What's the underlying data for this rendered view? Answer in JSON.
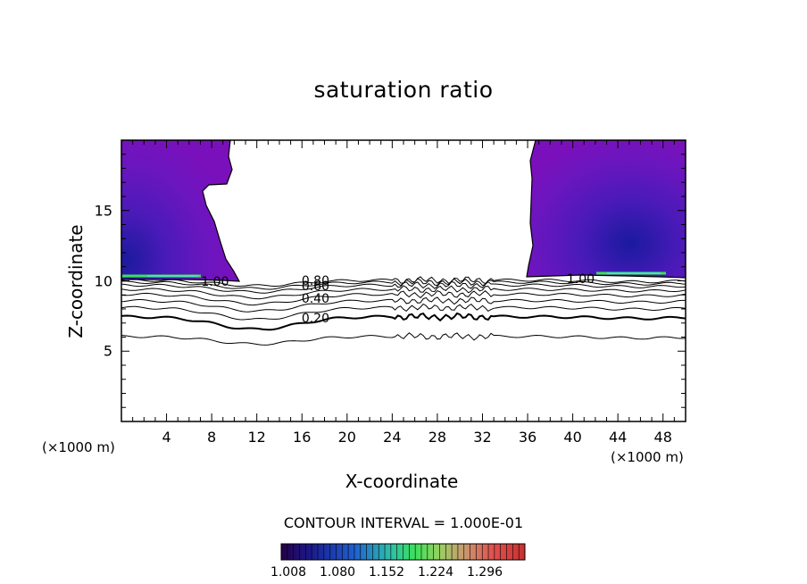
{
  "chart_data": {
    "type": "contour",
    "title": "saturation ratio",
    "xlabel": "X-coordinate",
    "ylabel": "Z-coordinate",
    "x_unit_left": "(×1000 m)",
    "x_unit_right": "(×1000 m)",
    "xlim": [
      0,
      50
    ],
    "ylim": [
      0,
      20
    ],
    "x_ticks": [
      4,
      8,
      12,
      16,
      20,
      24,
      28,
      32,
      36,
      40,
      44,
      48
    ],
    "y_ticks": [
      5,
      10,
      15
    ],
    "contour_interval_text": "CONTOUR INTERVAL = 1.000E-01",
    "contour_labels": [
      {
        "text": "1.00",
        "x": 8.3,
        "z": 9.9
      },
      {
        "text": "1.00",
        "x": 40.7,
        "z": 10.1
      },
      {
        "text": "0.80",
        "x": 17.2,
        "z": 10.0
      },
      {
        "text": "0.60",
        "x": 17.2,
        "z": 9.6
      },
      {
        "text": "0.40",
        "x": 17.2,
        "z": 8.7
      },
      {
        "text": "0.20",
        "x": 17.2,
        "z": 7.3
      }
    ],
    "contour_lines": [
      {
        "level": 0.9,
        "z": 10.05,
        "dip": 0.4
      },
      {
        "level": 0.8,
        "z": 9.9,
        "dip": 0.45
      },
      {
        "level": 0.7,
        "z": 9.7,
        "dip": 0.5
      },
      {
        "level": 0.6,
        "z": 9.4,
        "dip": 0.6
      },
      {
        "level": 0.5,
        "z": 9.05,
        "dip": 0.7
      },
      {
        "level": 0.4,
        "z": 8.6,
        "dip": 0.75
      },
      {
        "level": 0.3,
        "z": 8.1,
        "dip": 0.85
      },
      {
        "level": 0.2,
        "z": 7.45,
        "dip": 0.9
      },
      {
        "level": 0.1,
        "z": 6.05,
        "dip": 0.55
      }
    ],
    "colorbar": {
      "labels": [
        "1.008",
        "1.080",
        "1.152",
        "1.224",
        "1.296"
      ],
      "colors": [
        "#26004a",
        "#1a1a8a",
        "#1f5fd0",
        "#2fc0a8",
        "#3ce05a",
        "#9ad060",
        "#c89a70",
        "#d87060",
        "#e05050",
        "#c83030"
      ]
    },
    "supersaturated_regions": [
      {
        "name": "left cloud",
        "x_range": [
          0,
          10.5
        ],
        "z_range": [
          10.0,
          20
        ]
      },
      {
        "name": "right cloud",
        "x_range": [
          36.5,
          50
        ],
        "z_range": [
          10.2,
          20
        ]
      }
    ]
  }
}
